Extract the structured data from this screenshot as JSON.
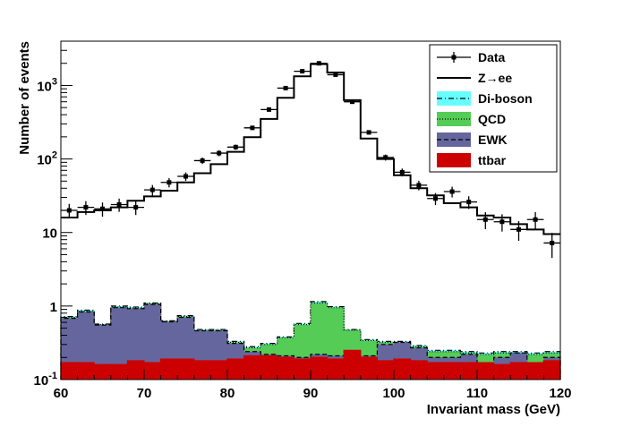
{
  "chart_data": {
    "type": "histogram",
    "xlabel": "Invariant mass (GeV)",
    "ylabel": "Number of events",
    "xlim": [
      60,
      120
    ],
    "ylim": [
      0.1,
      4000
    ],
    "yscale": "log",
    "grid": false,
    "legend_position": "top-right",
    "bin_edges": [
      60,
      62,
      64,
      66,
      68,
      70,
      72,
      74,
      76,
      78,
      80,
      82,
      84,
      86,
      88,
      90,
      92,
      94,
      96,
      98,
      100,
      102,
      104,
      106,
      108,
      110,
      112,
      114,
      116,
      118,
      120
    ],
    "x_ticks": [
      "60",
      "70",
      "80",
      "90",
      "100",
      "110",
      "120"
    ],
    "y_ticks": [
      {
        "value": 0.1,
        "base": "10",
        "exp": "-1"
      },
      {
        "value": 1,
        "base": "1",
        "exp": ""
      },
      {
        "value": 10,
        "base": "10",
        "exp": ""
      },
      {
        "value": 100,
        "base": "10",
        "exp": "2"
      },
      {
        "value": 1000,
        "base": "10",
        "exp": "3"
      }
    ],
    "series": [
      {
        "name": "Data",
        "kind": "points",
        "color": "#000000",
        "values": [
          20,
          22,
          21,
          24,
          22,
          38,
          48,
          58,
          95,
          120,
          145,
          265,
          470,
          920,
          1560,
          2000,
          1400,
          600,
          230,
          105,
          66,
          44,
          29,
          36,
          26,
          15,
          14,
          11,
          15,
          7.2
        ],
        "errors": [
          4.5,
          4.7,
          4.6,
          4.9,
          4.7,
          6.2,
          6.9,
          7.6,
          9.7,
          11,
          12,
          16,
          22,
          30,
          40,
          45,
          37,
          24,
          15,
          10,
          8.1,
          6.6,
          5.4,
          6.0,
          5.1,
          3.9,
          3.7,
          3.3,
          3.9,
          2.7
        ]
      },
      {
        "name": "Z→ee",
        "kind": "step",
        "color": "#000000",
        "values": [
          16,
          19,
          20,
          22,
          27,
          31,
          37,
          48,
          64,
          85,
          125,
          198,
          350,
          680,
          1330,
          1950,
          1500,
          630,
          190,
          100,
          60,
          40,
          32,
          25,
          22,
          17,
          16,
          13,
          11,
          9.5
        ]
      },
      {
        "name": "Di-boson",
        "kind": "stack",
        "color": "#66FFFF",
        "line": "dashdot",
        "values": [
          0.72,
          0.88,
          0.57,
          1.0,
          0.97,
          1.1,
          0.63,
          0.74,
          0.48,
          0.48,
          0.33,
          0.28,
          0.31,
          0.38,
          0.58,
          1.15,
          0.98,
          0.48,
          0.35,
          0.33,
          0.33,
          0.29,
          0.25,
          0.25,
          0.24,
          0.23,
          0.24,
          0.24,
          0.23,
          0.24
        ]
      },
      {
        "name": "QCD",
        "kind": "stack",
        "color": "#55CC55",
        "line": "dotted",
        "values": [
          0.7,
          0.85,
          0.56,
          0.97,
          0.94,
          1.08,
          0.62,
          0.72,
          0.47,
          0.47,
          0.32,
          0.27,
          0.3,
          0.37,
          0.56,
          1.1,
          0.95,
          0.47,
          0.34,
          0.32,
          0.32,
          0.28,
          0.24,
          0.24,
          0.23,
          0.22,
          0.23,
          0.23,
          0.22,
          0.23
        ]
      },
      {
        "name": "EWK",
        "kind": "stack",
        "color": "#66669E",
        "line": "dashed",
        "values": [
          0.68,
          0.83,
          0.55,
          0.95,
          0.92,
          1.05,
          0.61,
          0.7,
          0.46,
          0.46,
          0.31,
          0.24,
          0.22,
          0.21,
          0.2,
          0.22,
          0.21,
          0.21,
          0.21,
          0.3,
          0.32,
          0.27,
          0.2,
          0.2,
          0.22,
          0.17,
          0.2,
          0.23,
          0.17,
          0.2
        ]
      },
      {
        "name": "ttbar",
        "kind": "stack",
        "color": "#CC0000",
        "line": "solid",
        "values": [
          0.17,
          0.17,
          0.16,
          0.16,
          0.18,
          0.17,
          0.19,
          0.19,
          0.18,
          0.18,
          0.19,
          0.21,
          0.21,
          0.2,
          0.19,
          0.2,
          0.19,
          0.25,
          0.2,
          0.18,
          0.19,
          0.18,
          0.17,
          0.17,
          0.17,
          0.17,
          0.16,
          0.17,
          0.17,
          0.18
        ]
      }
    ]
  }
}
